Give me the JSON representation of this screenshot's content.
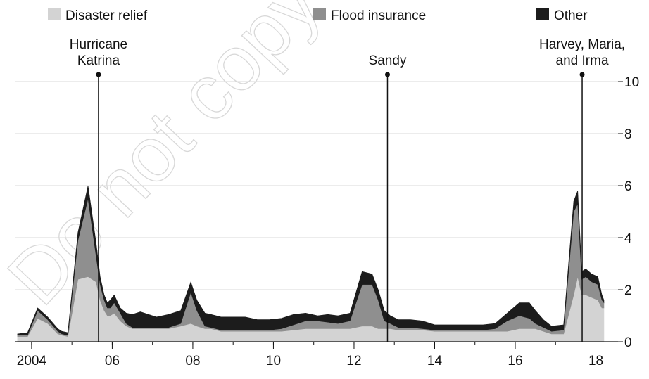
{
  "chart_data": {
    "type": "area",
    "stacked": true,
    "grid": true,
    "y_axis_side": "right",
    "legend_placement": "top",
    "ylim": [
      0,
      10
    ],
    "yticks": [
      0,
      2,
      4,
      6,
      8,
      10
    ],
    "xlim": [
      2003.6,
      2018.55
    ],
    "xticks": [
      {
        "x": 2004,
        "label": "2004"
      },
      {
        "x": 2006,
        "label": "06"
      },
      {
        "x": 2008,
        "label": "08"
      },
      {
        "x": 2010,
        "label": "10"
      },
      {
        "x": 2012,
        "label": "12"
      },
      {
        "x": 2014,
        "label": "14"
      },
      {
        "x": 2016,
        "label": "16"
      },
      {
        "x": 2018,
        "label": "18"
      }
    ],
    "x": [
      2003.65,
      2003.9,
      2004.15,
      2004.4,
      2004.65,
      2004.75,
      2004.9,
      2005.15,
      2005.4,
      2005.6,
      2005.7,
      2005.8,
      2005.88,
      2005.95,
      2006.05,
      2006.2,
      2006.35,
      2006.5,
      2006.7,
      2006.9,
      2007.1,
      2007.4,
      2007.7,
      2007.95,
      2008.1,
      2008.3,
      2008.45,
      2008.7,
      2009.0,
      2009.3,
      2009.6,
      2009.9,
      2010.2,
      2010.5,
      2010.8,
      2011.1,
      2011.35,
      2011.6,
      2011.9,
      2012.2,
      2012.45,
      2012.6,
      2012.75,
      2012.9,
      2013.1,
      2013.4,
      2013.7,
      2014.0,
      2014.3,
      2014.6,
      2014.9,
      2015.2,
      2015.5,
      2015.8,
      2016.1,
      2016.35,
      2016.5,
      2016.7,
      2016.9,
      2017.2,
      2017.45,
      2017.55,
      2017.65,
      2017.75,
      2017.9,
      2018.05,
      2018.15,
      2018.2
    ],
    "series": [
      {
        "name": "Disaster relief",
        "color": "#d3d3d3",
        "values": [
          0.2,
          0.2,
          0.9,
          0.7,
          0.3,
          0.25,
          0.2,
          2.4,
          2.5,
          2.3,
          1.6,
          1.2,
          1.0,
          1.0,
          1.1,
          0.8,
          0.6,
          0.5,
          0.5,
          0.5,
          0.5,
          0.5,
          0.6,
          0.7,
          0.6,
          0.5,
          0.5,
          0.4,
          0.4,
          0.4,
          0.4,
          0.4,
          0.4,
          0.45,
          0.5,
          0.5,
          0.5,
          0.5,
          0.5,
          0.6,
          0.6,
          0.5,
          0.5,
          0.5,
          0.45,
          0.45,
          0.45,
          0.4,
          0.4,
          0.4,
          0.4,
          0.4,
          0.4,
          0.4,
          0.5,
          0.5,
          0.5,
          0.4,
          0.3,
          0.3,
          1.8,
          2.5,
          1.8,
          1.8,
          1.7,
          1.6,
          1.3,
          1.3
        ]
      },
      {
        "name": "Flood insurance",
        "color": "#8f8f8f",
        "values": [
          0.05,
          0.05,
          0.3,
          0.15,
          0.1,
          0.05,
          0.05,
          1.5,
          3.0,
          1.0,
          0.6,
          0.4,
          0.3,
          0.3,
          0.4,
          0.3,
          0.1,
          0.05,
          0.05,
          0.05,
          0.05,
          0.05,
          0.1,
          1.2,
          0.6,
          0.1,
          0.05,
          0.05,
          0.05,
          0.05,
          0.05,
          0.05,
          0.1,
          0.2,
          0.3,
          0.3,
          0.25,
          0.2,
          0.3,
          1.6,
          1.6,
          1.1,
          0.3,
          0.2,
          0.1,
          0.1,
          0.05,
          0.05,
          0.05,
          0.05,
          0.05,
          0.05,
          0.1,
          0.4,
          0.5,
          0.4,
          0.2,
          0.15,
          0.1,
          0.15,
          3.2,
          2.8,
          0.6,
          0.7,
          0.6,
          0.6,
          0.3,
          0.2
        ]
      },
      {
        "name": "Other",
        "color": "#1c1c1c",
        "values": [
          0.05,
          0.1,
          0.1,
          0.1,
          0.1,
          0.1,
          0.1,
          0.3,
          0.5,
          0.5,
          0.3,
          0.2,
          0.2,
          0.3,
          0.3,
          0.2,
          0.4,
          0.5,
          0.6,
          0.5,
          0.4,
          0.5,
          0.5,
          0.4,
          0.4,
          0.5,
          0.5,
          0.5,
          0.5,
          0.5,
          0.4,
          0.4,
          0.4,
          0.4,
          0.3,
          0.2,
          0.3,
          0.3,
          0.3,
          0.5,
          0.4,
          0.4,
          0.4,
          0.3,
          0.3,
          0.3,
          0.3,
          0.2,
          0.2,
          0.2,
          0.2,
          0.2,
          0.2,
          0.3,
          0.5,
          0.6,
          0.5,
          0.3,
          0.2,
          0.2,
          0.4,
          0.5,
          0.3,
          0.3,
          0.3,
          0.3,
          0.2,
          0.1
        ]
      }
    ],
    "legend": [
      "Disaster relief",
      "Flood insurance",
      "Other"
    ],
    "annotations": [
      {
        "x": 2005.66,
        "lines": [
          "Hurricane",
          "Katrina"
        ]
      },
      {
        "x": 2012.83,
        "lines": [
          "Sandy"
        ]
      },
      {
        "x": 2017.66,
        "lines": [
          "Harvey, Maria,",
          "and Irma"
        ]
      }
    ],
    "annotation_line_color": "#111111"
  },
  "watermark": "Do not copy"
}
